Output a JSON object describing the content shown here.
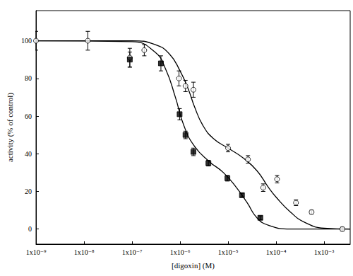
{
  "chart_data": {
    "type": "scatter",
    "x_label": "[digoxin] (M)",
    "y_label": "activity (% of control)",
    "log": "x",
    "grid": false,
    "xlim": [
      1e-09,
      0.0035
    ],
    "xticks": [
      {
        "value": 1e-09,
        "label": "1x10⁻⁹"
      },
      {
        "value": 1e-08,
        "label": "1x10⁻⁸"
      },
      {
        "value": 1e-07,
        "label": "1x10⁻⁷"
      },
      {
        "value": 1e-06,
        "label": "1x10⁻⁶"
      },
      {
        "value": 1e-05,
        "label": "1x10⁻⁵"
      },
      {
        "value": 0.0001,
        "label": "1x10⁻⁴"
      },
      {
        "value": 0.001,
        "label": "1x10⁻³"
      }
    ],
    "ylim": [
      -8,
      116
    ],
    "yticks": [
      0,
      20,
      40,
      60,
      80,
      100
    ],
    "series": [
      {
        "type": "scatter",
        "marker": "circle-open",
        "color": "#000000",
        "x": [
          1e-09,
          1.2e-08,
          9e-08,
          1.8e-07,
          9.5e-07,
          1.3e-06,
          1.9e-06,
          1e-05,
          2.6e-05,
          5.4e-05,
          0.000105,
          0.00026,
          0.00055,
          0.0024
        ],
        "values": [
          100,
          100,
          91,
          95,
          80,
          76,
          74,
          43,
          37,
          22,
          26.5,
          14,
          9,
          0
        ],
        "errors": [
          5,
          5,
          5,
          3,
          4,
          3,
          4,
          2,
          2,
          2,
          2,
          1.5,
          1,
          1
        ]
      },
      {
        "type": "scatter",
        "marker": "square",
        "color": "#000000",
        "x": [
          9e-08,
          4e-07,
          9.8e-07,
          1.3e-06,
          1.9e-06,
          3.9e-06,
          9.7e-06,
          1.95e-05,
          4.7e-05
        ],
        "values": [
          90,
          88,
          61,
          50,
          41,
          35,
          27,
          18,
          6
        ],
        "errors": [
          4,
          4,
          3,
          2,
          2,
          1.5,
          1.5,
          1,
          1
        ]
      },
      {
        "type": "line",
        "line_style": "solid",
        "color": "#000000",
        "x": [
          1e-09,
          1e-07,
          3e-07,
          6e-07,
          1e-06,
          1.5e-06,
          2e-06,
          3e-06,
          5e-06,
          1e-05,
          2e-05,
          4e-05,
          7e-05,
          0.0001,
          0.0002,
          0.0004,
          0.001,
          0.0035
        ],
        "values": [
          100,
          100,
          98,
          93,
          84,
          74,
          65,
          55,
          48,
          43,
          38,
          31,
          22,
          17,
          9,
          3.5,
          0.5,
          0
        ]
      },
      {
        "type": "line",
        "line_style": "solid",
        "color": "#000000",
        "x": [
          1e-09,
          1e-07,
          3e-07,
          5e-07,
          8e-07,
          1.2e-06,
          2e-06,
          4e-06,
          8e-06,
          1.5e-05,
          2.5e-05,
          4e-05,
          7e-05,
          0.0002,
          0.0035
        ],
        "values": [
          100,
          99.5,
          94,
          85,
          70,
          55,
          44,
          36,
          30,
          22,
          14,
          6,
          2,
          0,
          0
        ]
      }
    ]
  }
}
